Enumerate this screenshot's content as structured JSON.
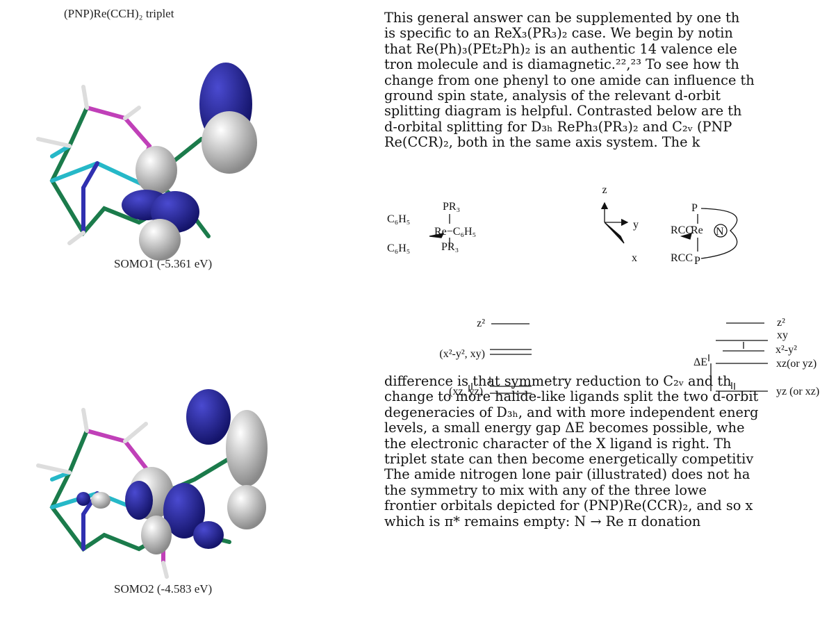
{
  "figure": {
    "title": "(PNP)Re(CCH)₂ triplet",
    "captions": [
      "SOMO1 (-5.361 eV)",
      "SOMO2 (-4.583 eV)"
    ]
  },
  "body": {
    "paragraphs": [
      [
        "This general answer can be supplemented by one th",
        "is specific to an ReX₃(PR₃)₂ case. We begin by notin",
        "that Re(Ph)₃(PEt₂Ph)₂ is an authentic 14 valence ele",
        "tron molecule and is diamagnetic.²²,²³ To see how th",
        "change from one phenyl to one amide can influence th",
        "ground spin state, analysis of the relevant d-orbit",
        "splitting diagram is helpful. Contrasted below are th",
        "d-orbital splitting for D₃ₕ RePh₃(PR₃)₂ and C₂ᵥ (PNP",
        "Re(CCR)₂, both in the same axis system. The k"
      ],
      [
        "difference is that symmetry reduction to C₂ᵥ and th",
        "change to more halide-like ligands split the two d-orbit",
        "degeneracies of D₃ₕ, and with more independent energ",
        "levels, a small energy gap ΔE becomes possible, whe",
        "the electronic character of the X ligand is right. Th",
        "triplet state can then become energetically competitiv",
        "The amide nitrogen lone pair (illustrated) does not ha",
        "the symmetry to mix with any of the three lowe",
        "frontier orbitals depicted for (PNP)Re(CCR)₂, and so x",
        "which is π* remains empty: N → Re π donation"
      ]
    ]
  },
  "diagram": {
    "axes": [
      "z",
      "y",
      "x"
    ],
    "left_structure": [
      "PR₃",
      "C₆H₅",
      "Re−C₆H₅",
      "C₆H₅",
      "PR₃"
    ],
    "right_structure": [
      "P",
      "RCC",
      "Re",
      "N",
      "RCC",
      "P"
    ],
    "left_levels": [
      "z²",
      "(x²-y², xy)",
      "(xz, yz)"
    ],
    "right_levels": [
      "z²",
      "xy",
      "x²-y²",
      "xz(or yz)",
      "yz (or xz)"
    ],
    "gap_label": "ΔE"
  }
}
